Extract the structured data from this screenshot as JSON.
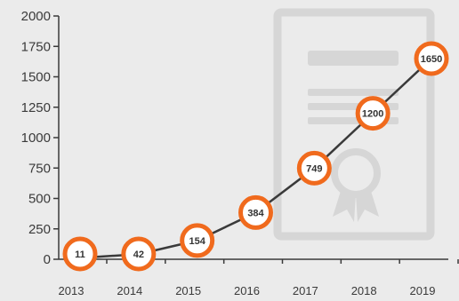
{
  "colors": {
    "background": "#ebebeb",
    "axis": "#3a3a3a",
    "line": "#3a3a3a",
    "marker_ring": "#f06a1d",
    "marker_fill": "#ffffff",
    "watermark": "#d6d6d6"
  },
  "watermark_icon": "certificate-icon",
  "chart_data": {
    "type": "line",
    "title": "",
    "xlabel": "",
    "ylabel": "",
    "x": [
      "2013",
      "2014",
      "2015",
      "2016",
      "2017",
      "2018",
      "2019"
    ],
    "values": [
      11,
      42,
      154,
      384,
      749,
      1200,
      1650
    ],
    "data_labels": [
      "11",
      "42",
      "154",
      "384",
      "749",
      "1200",
      "1650"
    ],
    "y_ticks": [
      "0",
      "250",
      "500",
      "750",
      "1000",
      "1250",
      "1500",
      "1750",
      "2000"
    ],
    "ylim": [
      0,
      2000
    ],
    "grid": false,
    "legend": "none"
  }
}
